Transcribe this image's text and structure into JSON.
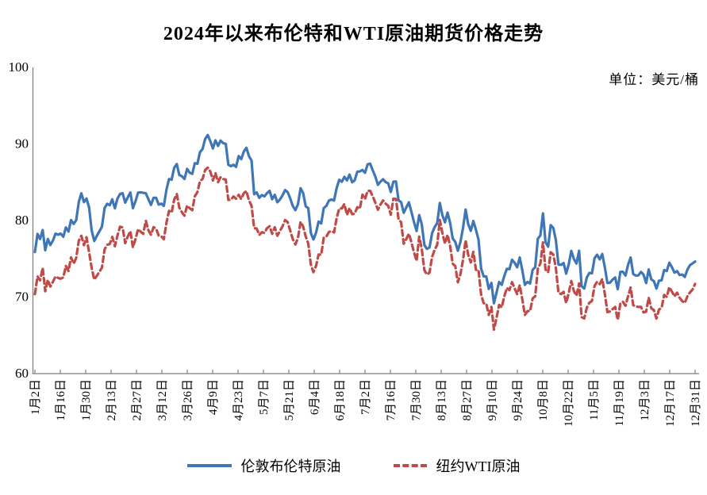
{
  "title": "2024年以来布伦特和WTI原油期货价格走势",
  "unit_label": "单位：美元/桶",
  "legend": [
    {
      "label": "伦敦布伦特原油",
      "color": "#3F76B5",
      "style": "solid"
    },
    {
      "label": "纽约WTI原油",
      "color": "#BE4B48",
      "style": "dashed"
    }
  ],
  "colors": {
    "brent": "#3F76B5",
    "wti": "#BE4B48",
    "axis": "#7F7F7F",
    "background": "#FFFFFF"
  },
  "chart_data": {
    "type": "line",
    "title": "2024年以来布伦特和WTI原油期货价格走势",
    "unit": "美元/桶",
    "xlabel": "",
    "ylabel": "",
    "ylim": [
      60,
      100
    ],
    "y_ticks": [
      60,
      70,
      80,
      90,
      100
    ],
    "grid": false,
    "legend_position": "bottom",
    "x_tick_labels": [
      "1月2日",
      "1月16日",
      "1月30日",
      "2月13日",
      "2月27日",
      "3月12日",
      "3月26日",
      "4月9日",
      "4月23日",
      "5月7日",
      "5月21日",
      "6月4日",
      "6月18日",
      "7月2日",
      "7月16日",
      "7月30日",
      "8月13日",
      "8月27日",
      "9月10日",
      "9月24日",
      "10月8日",
      "10月22日",
      "11月5日",
      "11月19日",
      "12月3日",
      "12月17日",
      "12月31日"
    ],
    "series": [
      {
        "name": "伦敦布伦特原油",
        "color": "#3F76B5",
        "line_style": "solid",
        "values": [
          75.89,
          78.25,
          77.59,
          78.76,
          76.12,
          77.59,
          76.8,
          77.41,
          78.29,
          78.15,
          78.29,
          77.88,
          79.1,
          78.56,
          80.06,
          79.55,
          80.04,
          82.43,
          83.55,
          82.4,
          82.87,
          81.71,
          78.7,
          77.33,
          77.99,
          78.59,
          79.21,
          81.63,
          82.19,
          82.0,
          82.77,
          81.6,
          82.86,
          83.47,
          83.56,
          82.34,
          83.03,
          83.67,
          81.62,
          82.53,
          83.65,
          83.68,
          83.62,
          83.55,
          82.8,
          82.04,
          82.96,
          82.96,
          82.08,
          82.21,
          81.92,
          84.03,
          85.42,
          85.34,
          86.89,
          87.38,
          85.95,
          85.78,
          85.43,
          86.75,
          86.25,
          86.09,
          87.48,
          87.42,
          88.92,
          89.35,
          90.65,
          91.17,
          90.38,
          89.42,
          90.48,
          89.74,
          90.45,
          90.1,
          90.02,
          87.29,
          87.11,
          87.29,
          87.0,
          88.42,
          88.02,
          89.01,
          89.5,
          88.4,
          87.86,
          83.44,
          83.67,
          82.96,
          83.33,
          83.16,
          83.58,
          83.88,
          82.79,
          83.36,
          82.38,
          82.75,
          83.27,
          83.98,
          83.71,
          82.88,
          81.9,
          81.36,
          82.12,
          84.22,
          83.6,
          81.86,
          81.62,
          78.36,
          77.52,
          78.41,
          79.87,
          79.62,
          81.63,
          81.92,
          82.6,
          82.75,
          82.62,
          84.25,
          85.33,
          85.07,
          85.71,
          85.24,
          86.01,
          85.01,
          85.25,
          86.39,
          86.41,
          86.6,
          86.24,
          87.34,
          87.43,
          86.54,
          85.75,
          84.66,
          85.08,
          85.4,
          85.03,
          84.85,
          83.73,
          85.08,
          85.11,
          82.63,
          82.4,
          81.01,
          81.71,
          82.37,
          81.13,
          79.78,
          78.63,
          80.72,
          79.52,
          76.81,
          76.3,
          76.48,
          78.33,
          79.16,
          79.66,
          82.3,
          80.69,
          79.76,
          81.04,
          79.68,
          77.66,
          77.2,
          76.05,
          77.22,
          79.02,
          81.43,
          79.55,
          78.65,
          79.94,
          78.8,
          77.52,
          73.75,
          72.7,
          72.69,
          71.06,
          71.84,
          69.19,
          70.61,
          71.97,
          71.61,
          72.75,
          73.7,
          73.65,
          74.88,
          74.49,
          73.9,
          75.17,
          73.46,
          71.6,
          71.98,
          71.77,
          73.56,
          73.9,
          77.62,
          78.05,
          80.93,
          77.18,
          76.58,
          79.4,
          79.04,
          77.46,
          74.25,
          74.22,
          74.45,
          73.06,
          74.29,
          76.04,
          74.96,
          74.38,
          76.05,
          71.42,
          71.12,
          72.55,
          73.16,
          73.1,
          75.08,
          75.53,
          74.92,
          75.63,
          73.87,
          71.83,
          71.89,
          72.28,
          72.56,
          71.04,
          73.3,
          73.31,
          72.81,
          74.23,
          75.17,
          73.01,
          72.81,
          72.83,
          73.28,
          72.94,
          71.83,
          73.62,
          72.31,
          72.09,
          71.12,
          72.14,
          72.19,
          73.52,
          73.41,
          74.49,
          73.91,
          73.19,
          73.39,
          72.88,
          72.94,
          72.63,
          73.58,
          74.17,
          74.39,
          74.64
        ]
      },
      {
        "name": "纽约WTI原油",
        "color": "#BE4B48",
        "line_style": "dashed",
        "values": [
          70.38,
          72.7,
          72.19,
          73.81,
          70.77,
          72.24,
          71.37,
          72.02,
          72.68,
          72.5,
          72.4,
          72.56,
          74.08,
          73.41,
          75.19,
          74.37,
          75.09,
          77.36,
          78.01,
          76.78,
          77.82,
          75.85,
          73.82,
          72.28,
          72.78,
          73.31,
          73.86,
          76.22,
          76.84,
          76.92,
          77.87,
          76.64,
          78.03,
          79.19,
          79.1,
          77.04,
          77.91,
          78.61,
          76.49,
          77.58,
          78.87,
          78.54,
          78.26,
          79.97,
          78.74,
          78.15,
          79.13,
          78.93,
          78.01,
          77.93,
          77.56,
          79.72,
          81.26,
          81.04,
          82.72,
          83.47,
          81.68,
          81.07,
          80.63,
          81.95,
          81.62,
          81.35,
          83.17,
          83.71,
          85.15,
          85.43,
          86.59,
          86.91,
          86.43,
          85.23,
          86.21,
          85.02,
          85.66,
          85.41,
          85.36,
          82.69,
          82.73,
          83.14,
          82.85,
          83.36,
          82.81,
          83.57,
          83.85,
          82.63,
          81.93,
          79.0,
          78.95,
          78.11,
          78.48,
          78.38,
          78.99,
          79.26,
          78.26,
          79.12,
          78.02,
          78.63,
          79.23,
          80.06,
          79.8,
          78.66,
          77.57,
          76.87,
          77.72,
          79.83,
          79.23,
          77.91,
          76.99,
          74.22,
          73.25,
          74.07,
          75.55,
          75.53,
          77.74,
          77.9,
          78.5,
          78.62,
          78.45,
          80.33,
          81.57,
          81.57,
          82.17,
          80.73,
          81.63,
          80.83,
          80.9,
          81.74,
          81.54,
          83.38,
          82.81,
          83.88,
          83.88,
          83.16,
          82.33,
          81.41,
          82.1,
          82.62,
          82.21,
          81.91,
          80.76,
          82.85,
          82.82,
          80.13,
          79.78,
          76.96,
          77.59,
          78.28,
          77.16,
          75.81,
          74.73,
          77.91,
          76.31,
          73.52,
          72.94,
          73.2,
          75.23,
          76.19,
          76.84,
          80.06,
          78.35,
          76.98,
          78.16,
          76.65,
          74.37,
          74.04,
          71.93,
          73.01,
          74.83,
          77.42,
          75.53,
          74.52,
          75.91,
          73.55,
          73.55,
          70.34,
          69.2,
          69.15,
          67.67,
          68.71,
          65.75,
          67.31,
          68.97,
          68.65,
          70.09,
          71.19,
          70.91,
          71.95,
          71.14,
          70.37,
          71.56,
          69.69,
          67.67,
          68.18,
          68.17,
          69.83,
          70.1,
          73.71,
          74.38,
          77.14,
          73.57,
          73.24,
          75.85,
          75.56,
          73.83,
          70.58,
          70.39,
          70.67,
          69.22,
          70.56,
          72.09,
          70.77,
          70.19,
          71.78,
          67.38,
          67.21,
          68.61,
          69.26,
          69.49,
          71.47,
          71.99,
          71.69,
          72.36,
          70.38,
          68.04,
          68.12,
          68.43,
          68.7,
          67.02,
          69.16,
          69.39,
          68.87,
          70.1,
          71.24,
          68.94,
          68.77,
          68.72,
          68.72,
          68.0,
          68.1,
          69.94,
          68.54,
          68.3,
          67.2,
          68.37,
          68.59,
          70.29,
          70.02,
          71.29,
          70.71,
          70.08,
          70.58,
          69.91,
          69.46,
          69.24,
          70.1,
          70.6,
          70.99,
          71.72
        ]
      }
    ]
  }
}
